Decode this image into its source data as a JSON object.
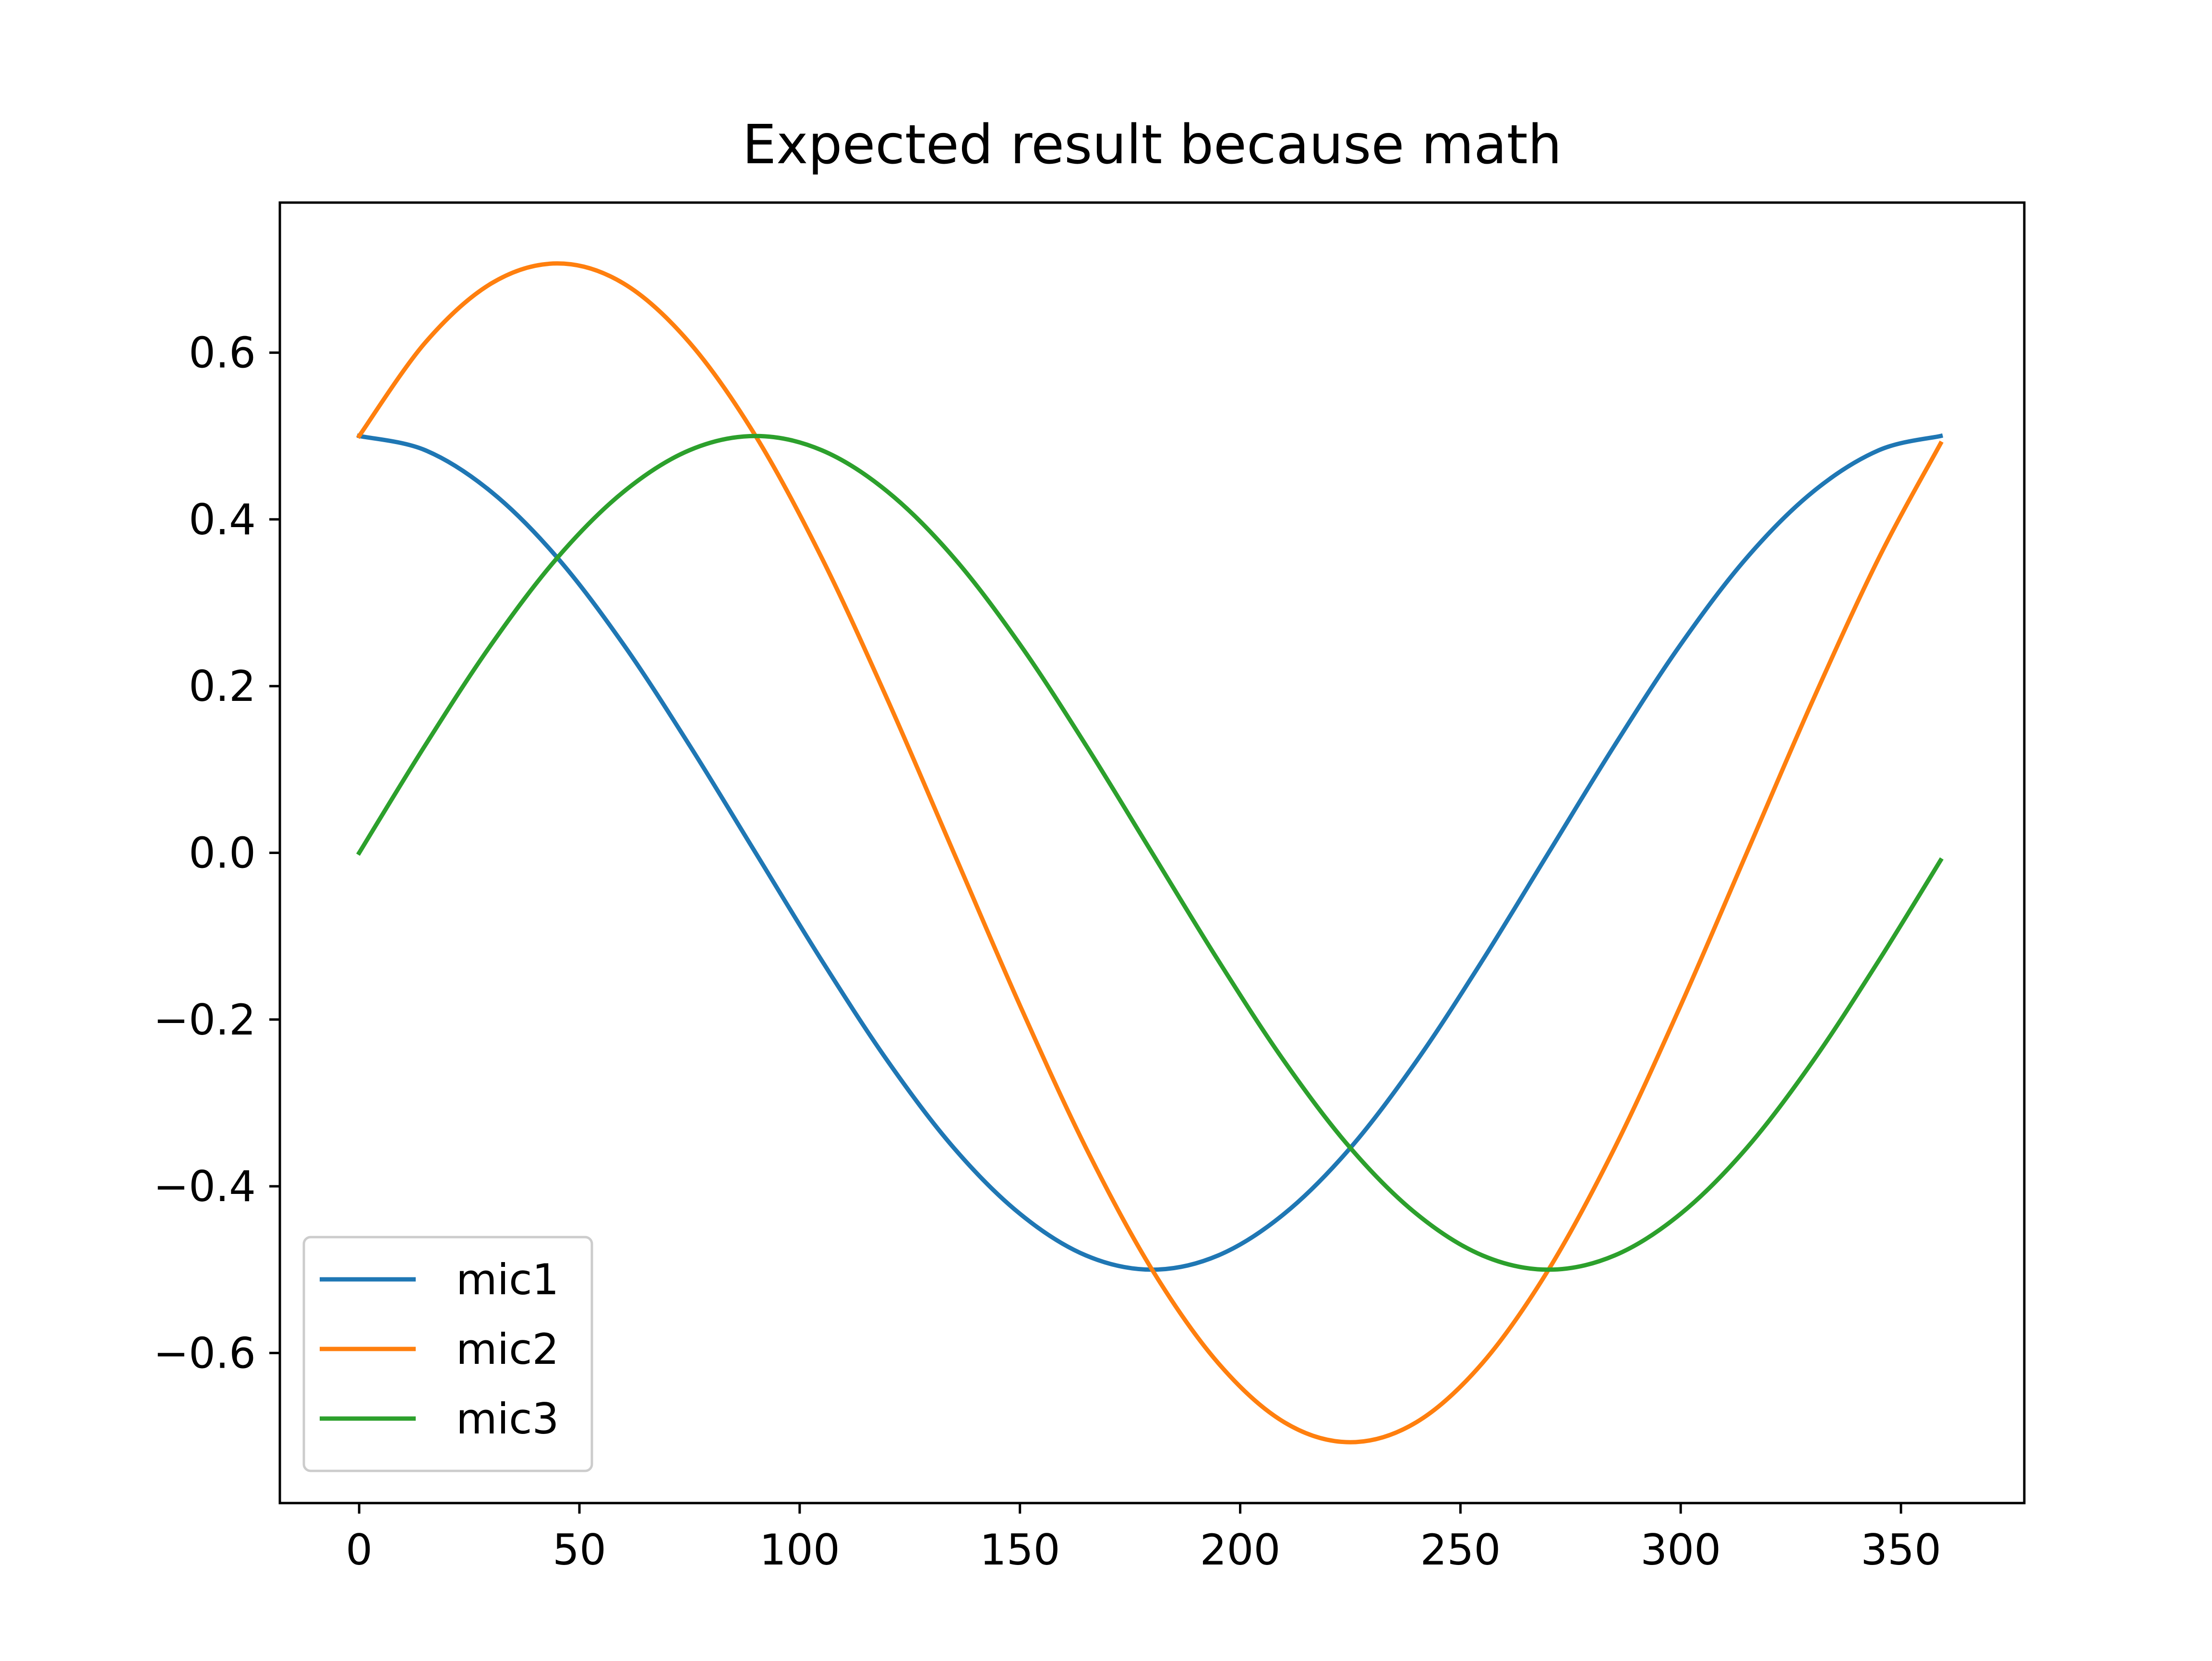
{
  "chart_data": {
    "type": "line",
    "title": "Expected result because math",
    "xlabel": "",
    "ylabel": "",
    "xlim": [
      -18,
      378
    ],
    "ylim": [
      -0.78,
      0.78
    ],
    "xticks": [
      0,
      50,
      100,
      150,
      200,
      250,
      300,
      350
    ],
    "yticks": [
      -0.6,
      -0.4,
      -0.2,
      0.0,
      0.2,
      0.4,
      0.6
    ],
    "ytick_labels": [
      "−0.6",
      "−0.4",
      "−0.2",
      "0.0",
      "0.2",
      "0.4",
      "0.6"
    ],
    "xtick_labels": [
      "0",
      "50",
      "100",
      "150",
      "200",
      "250",
      "300",
      "350"
    ],
    "grid": false,
    "legend": "lower-left",
    "series": [
      {
        "name": "mic1",
        "color": "#1f77b4",
        "x": [
          0,
          15,
          30,
          45,
          60,
          75,
          90,
          105,
          120,
          135,
          150,
          165,
          180,
          195,
          210,
          225,
          240,
          255,
          270,
          285,
          300,
          315,
          330,
          345,
          359
        ],
        "values": [
          0.5,
          0.483,
          0.433,
          0.354,
          0.25,
          0.129,
          0.0,
          -0.129,
          -0.25,
          -0.354,
          -0.433,
          -0.483,
          -0.5,
          -0.483,
          -0.433,
          -0.354,
          -0.25,
          -0.129,
          0.0,
          0.129,
          0.25,
          0.354,
          0.433,
          0.483,
          0.5
        ]
      },
      {
        "name": "mic2",
        "color": "#ff7f0e",
        "x": [
          0,
          15,
          30,
          45,
          60,
          75,
          90,
          105,
          120,
          135,
          150,
          165,
          180,
          195,
          210,
          225,
          240,
          255,
          270,
          285,
          300,
          315,
          330,
          345,
          359
        ],
        "values": [
          0.5,
          0.612,
          0.683,
          0.707,
          0.683,
          0.612,
          0.5,
          0.354,
          0.183,
          0.0,
          -0.183,
          -0.354,
          -0.5,
          -0.612,
          -0.683,
          -0.707,
          -0.683,
          -0.612,
          -0.5,
          -0.354,
          -0.183,
          0.0,
          0.183,
          0.354,
          0.491
        ]
      },
      {
        "name": "mic3",
        "color": "#2ca02c",
        "x": [
          0,
          15,
          30,
          45,
          60,
          75,
          90,
          105,
          120,
          135,
          150,
          165,
          180,
          195,
          210,
          225,
          240,
          255,
          270,
          285,
          300,
          315,
          330,
          345,
          359
        ],
        "values": [
          0.0,
          0.129,
          0.25,
          0.354,
          0.433,
          0.483,
          0.5,
          0.483,
          0.433,
          0.354,
          0.25,
          0.129,
          0.0,
          -0.129,
          -0.25,
          -0.354,
          -0.433,
          -0.483,
          -0.5,
          -0.483,
          -0.433,
          -0.354,
          -0.25,
          -0.129,
          -0.009
        ]
      }
    ]
  }
}
